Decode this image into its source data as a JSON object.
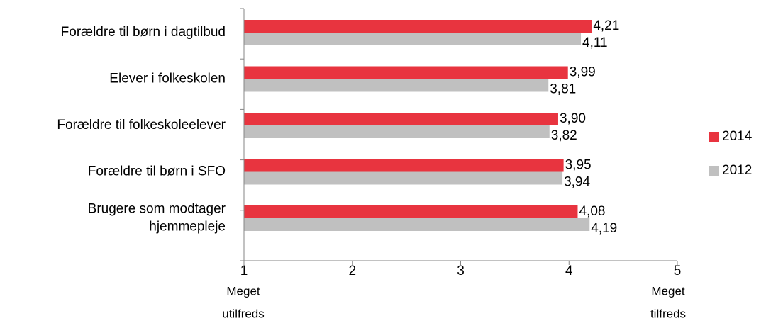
{
  "chart_data": {
    "type": "bar",
    "orientation": "horizontal",
    "categories": [
      [
        "Forældre til børn i dagtilbud"
      ],
      [
        "Elever i folkeskolen"
      ],
      [
        "Forældre til folkeskoleelever"
      ],
      [
        "Forældre til børn i SFO"
      ],
      [
        "Brugere som modtager",
        "hjemmepleje"
      ]
    ],
    "series": [
      {
        "name": "2014",
        "color": "#e8343f",
        "values": [
          4.21,
          3.99,
          3.9,
          3.95,
          4.08
        ],
        "labels": [
          "4,21",
          "3,99",
          "3,90",
          "3,95",
          "4,08"
        ]
      },
      {
        "name": "2012",
        "color": "#c0c0c0",
        "values": [
          4.11,
          3.81,
          3.82,
          3.94,
          4.19
        ],
        "labels": [
          "4,11",
          "3,81",
          "3,82",
          "3,94",
          "4,19"
        ]
      }
    ],
    "xlim": [
      1,
      5
    ],
    "xticks": [
      1,
      2,
      3,
      4,
      5
    ],
    "xtick_labels": [
      "1",
      "2",
      "3",
      "4",
      "5"
    ],
    "axis_captions": {
      "left": [
        "Meget",
        "utilfreds"
      ],
      "right": [
        "Meget",
        "tilfreds"
      ]
    },
    "legend_placement": "right",
    "grid": false,
    "title": "",
    "xlabel": "",
    "ylabel": ""
  }
}
